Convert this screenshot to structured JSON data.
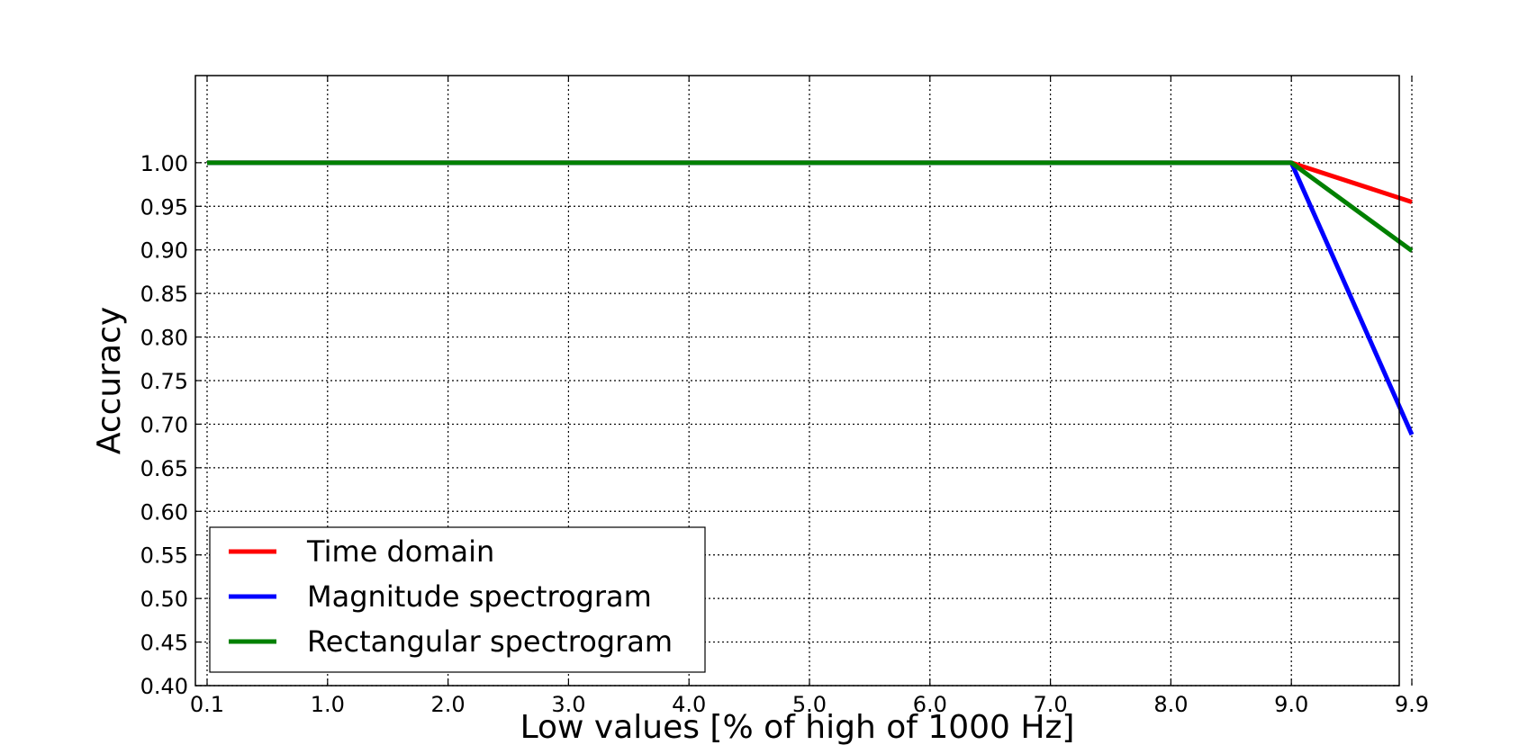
{
  "chart_data": {
    "type": "line",
    "title": "",
    "xlabel": "Low values [% of high of 1000 Hz]",
    "ylabel": "Accuracy",
    "x": [
      "0.1",
      "1.0",
      "2.0",
      "3.0",
      "4.0",
      "5.0",
      "6.0",
      "7.0",
      "8.0",
      "9.0",
      "9.9"
    ],
    "x_ticks": [
      "0.1",
      "1.0",
      "2.0",
      "3.0",
      "4.0",
      "5.0",
      "6.0",
      "7.0",
      "8.0",
      "9.0",
      "9.9"
    ],
    "y_ticks": [
      "1.00",
      "0.95",
      "0.90",
      "0.85",
      "0.80",
      "0.75",
      "0.70",
      "0.65",
      "0.60",
      "0.55",
      "0.50",
      "0.45",
      "0.40"
    ],
    "ylim": [
      0.4,
      1.1
    ],
    "grid": true,
    "legend_position": "lower-left",
    "series": [
      {
        "name": "Time domain",
        "color": "#ff0000",
        "values": [
          1.0,
          1.0,
          1.0,
          1.0,
          1.0,
          1.0,
          1.0,
          1.0,
          1.0,
          1.0,
          0.955
        ]
      },
      {
        "name": "Magnitude spectrogram",
        "color": "#0000ff",
        "values": [
          1.0,
          1.0,
          1.0,
          1.0,
          1.0,
          1.0,
          1.0,
          1.0,
          1.0,
          1.0,
          0.688
        ]
      },
      {
        "name": "Rectangular spectrogram",
        "color": "#008000",
        "values": [
          1.0,
          1.0,
          1.0,
          1.0,
          1.0,
          1.0,
          1.0,
          1.0,
          1.0,
          1.0,
          0.899
        ]
      }
    ]
  }
}
